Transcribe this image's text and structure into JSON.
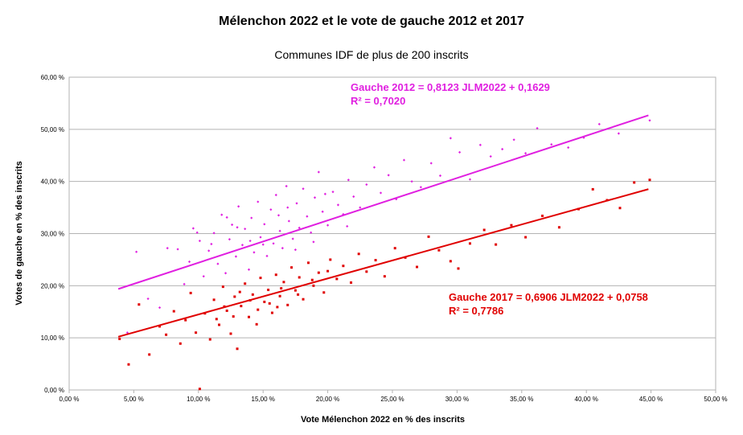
{
  "title": "Mélenchon 2022 et le vote de gauche 2012 et 2017",
  "subtitle": "Communes IDF de plus de 200 inscrits",
  "chart_data": {
    "type": "scatter",
    "title": "Mélenchon 2022 et le vote de gauche 2012 et 2017",
    "subtitle": "Communes IDF de plus de 200 inscrits",
    "xlabel": "Vote Mélenchon 2022 en % des inscrits",
    "ylabel": "Votes de gauche en % des inscrits",
    "xlim": [
      0,
      50
    ],
    "ylim": [
      0,
      60
    ],
    "x_ticks": [
      0,
      5,
      10,
      15,
      20,
      25,
      30,
      35,
      40,
      45,
      50
    ],
    "x_tick_labels": [
      "0,00 %",
      "5,00 %",
      "10,00 %",
      "15,00 %",
      "20,00 %",
      "25,00 %",
      "30,00 %",
      "35,00 %",
      "40,00 %",
      "45,00 %",
      "50,00 %"
    ],
    "y_ticks": [
      0,
      10,
      20,
      30,
      40,
      50,
      60
    ],
    "y_tick_labels": [
      "0,00 %",
      "10,00 %",
      "20,00 %",
      "30,00 %",
      "40,00 %",
      "50,00 %",
      "60,00 %"
    ],
    "grid": "horizontal",
    "series": [
      {
        "name": "Gauche 2012",
        "color": "#e020e0",
        "marker": "small-diamond",
        "trendline": {
          "slope": 0.8123,
          "intercept": 0.1629,
          "x_range": [
            3.8,
            44.8
          ]
        },
        "equation": "Gauche 2012 = 0,8123 JLM2022 + 0,1629",
        "r2": "R² = 0,7020",
        "points": [
          [
            4.5,
            11.0
          ],
          [
            5.2,
            26.5
          ],
          [
            6.1,
            17.5
          ],
          [
            7.0,
            15.8
          ],
          [
            7.6,
            27.2
          ],
          [
            8.4,
            27.0
          ],
          [
            8.9,
            20.3
          ],
          [
            9.3,
            24.6
          ],
          [
            9.6,
            31.0
          ],
          [
            10.1,
            28.6
          ],
          [
            10.4,
            21.8
          ],
          [
            10.8,
            26.7
          ],
          [
            11.2,
            30.1
          ],
          [
            11.5,
            24.2
          ],
          [
            11.8,
            33.6
          ],
          [
            12.1,
            22.4
          ],
          [
            12.4,
            28.9
          ],
          [
            12.6,
            31.7
          ],
          [
            12.9,
            25.6
          ],
          [
            13.1,
            35.2
          ],
          [
            13.4,
            27.8
          ],
          [
            13.6,
            30.9
          ],
          [
            13.9,
            23.1
          ],
          [
            14.1,
            33.0
          ],
          [
            14.3,
            26.4
          ],
          [
            14.6,
            36.1
          ],
          [
            14.8,
            29.3
          ],
          [
            15.1,
            31.8
          ],
          [
            15.3,
            25.7
          ],
          [
            15.6,
            34.6
          ],
          [
            15.8,
            28.1
          ],
          [
            16.0,
            37.4
          ],
          [
            16.3,
            30.5
          ],
          [
            16.5,
            27.2
          ],
          [
            16.8,
            39.1
          ],
          [
            17.0,
            32.4
          ],
          [
            17.3,
            29.0
          ],
          [
            17.6,
            35.8
          ],
          [
            17.8,
            31.1
          ],
          [
            18.1,
            38.6
          ],
          [
            18.4,
            33.3
          ],
          [
            18.7,
            30.2
          ],
          [
            19.0,
            36.9
          ],
          [
            19.3,
            41.8
          ],
          [
            19.6,
            34.2
          ],
          [
            20.0,
            31.6
          ],
          [
            20.4,
            38.0
          ],
          [
            20.8,
            35.5
          ],
          [
            21.2,
            33.7
          ],
          [
            21.6,
            40.3
          ],
          [
            22.0,
            37.1
          ],
          [
            22.5,
            35.0
          ],
          [
            23.0,
            39.4
          ],
          [
            23.6,
            42.7
          ],
          [
            24.1,
            37.8
          ],
          [
            24.7,
            41.2
          ],
          [
            25.3,
            36.6
          ],
          [
            25.9,
            44.1
          ],
          [
            26.5,
            40.0
          ],
          [
            27.2,
            38.9
          ],
          [
            28.0,
            43.5
          ],
          [
            28.7,
            41.1
          ],
          [
            29.5,
            48.3
          ],
          [
            30.2,
            45.6
          ],
          [
            31.0,
            40.4
          ],
          [
            31.8,
            47.0
          ],
          [
            32.6,
            44.8
          ],
          [
            33.5,
            46.2
          ],
          [
            34.4,
            48.0
          ],
          [
            35.3,
            45.4
          ],
          [
            36.2,
            50.2
          ],
          [
            37.3,
            47.1
          ],
          [
            38.6,
            46.5
          ],
          [
            39.8,
            48.4
          ],
          [
            41.0,
            51.0
          ],
          [
            42.5,
            49.2
          ],
          [
            44.9,
            51.7
          ],
          [
            9.9,
            30.2
          ],
          [
            11.0,
            28.0
          ],
          [
            13.0,
            31.2
          ],
          [
            14.0,
            28.6
          ],
          [
            15.0,
            27.9
          ],
          [
            16.2,
            33.5
          ],
          [
            17.5,
            26.9
          ],
          [
            18.9,
            28.4
          ],
          [
            12.2,
            33.1
          ],
          [
            16.9,
            35.0
          ],
          [
            19.8,
            37.6
          ],
          [
            21.5,
            31.4
          ]
        ]
      },
      {
        "name": "Gauche 2017",
        "color": "#e00000",
        "marker": "small-square",
        "trendline": {
          "slope": 0.6906,
          "intercept": 0.0758,
          "x_range": [
            3.8,
            44.8
          ]
        },
        "equation": "Gauche 2017 = 0,6906 JLM2022 + 0,0758",
        "r2": "R² = 0,7786",
        "points": [
          [
            3.9,
            9.8
          ],
          [
            4.6,
            4.9
          ],
          [
            5.4,
            16.4
          ],
          [
            6.2,
            6.8
          ],
          [
            7.0,
            12.2
          ],
          [
            7.5,
            10.6
          ],
          [
            8.1,
            15.1
          ],
          [
            8.6,
            8.9
          ],
          [
            9.0,
            13.4
          ],
          [
            9.4,
            18.6
          ],
          [
            9.8,
            11.0
          ],
          [
            10.1,
            0.2
          ],
          [
            10.5,
            14.7
          ],
          [
            10.9,
            9.7
          ],
          [
            11.2,
            17.3
          ],
          [
            11.6,
            12.5
          ],
          [
            11.9,
            19.8
          ],
          [
            12.2,
            15.2
          ],
          [
            12.5,
            10.8
          ],
          [
            12.8,
            17.9
          ],
          [
            13.0,
            7.9
          ],
          [
            13.3,
            16.1
          ],
          [
            13.6,
            20.4
          ],
          [
            13.9,
            14.0
          ],
          [
            14.2,
            18.3
          ],
          [
            14.5,
            12.6
          ],
          [
            14.8,
            21.5
          ],
          [
            15.1,
            16.9
          ],
          [
            15.4,
            19.2
          ],
          [
            15.7,
            14.8
          ],
          [
            16.0,
            22.1
          ],
          [
            16.3,
            18.0
          ],
          [
            16.6,
            20.7
          ],
          [
            16.9,
            16.3
          ],
          [
            17.2,
            23.5
          ],
          [
            17.5,
            19.1
          ],
          [
            17.8,
            21.6
          ],
          [
            18.1,
            17.4
          ],
          [
            18.5,
            24.4
          ],
          [
            18.9,
            20.0
          ],
          [
            19.3,
            22.5
          ],
          [
            19.7,
            18.7
          ],
          [
            20.2,
            25.0
          ],
          [
            20.7,
            21.3
          ],
          [
            21.2,
            23.8
          ],
          [
            21.8,
            20.6
          ],
          [
            22.4,
            26.1
          ],
          [
            23.0,
            22.7
          ],
          [
            23.7,
            24.9
          ],
          [
            24.4,
            21.8
          ],
          [
            25.2,
            27.2
          ],
          [
            26.0,
            25.4
          ],
          [
            26.9,
            23.6
          ],
          [
            27.8,
            29.4
          ],
          [
            28.6,
            26.8
          ],
          [
            29.5,
            24.7
          ],
          [
            30.1,
            23.3
          ],
          [
            31.0,
            28.1
          ],
          [
            32.1,
            30.7
          ],
          [
            33.0,
            27.9
          ],
          [
            34.2,
            31.6
          ],
          [
            35.3,
            29.3
          ],
          [
            36.6,
            33.4
          ],
          [
            37.9,
            31.2
          ],
          [
            39.4,
            34.7
          ],
          [
            40.5,
            38.5
          ],
          [
            41.6,
            36.4
          ],
          [
            42.6,
            34.9
          ],
          [
            43.7,
            39.8
          ],
          [
            44.9,
            40.3
          ],
          [
            12.0,
            16.0
          ],
          [
            13.2,
            18.8
          ],
          [
            14.0,
            17.2
          ],
          [
            15.5,
            16.6
          ],
          [
            16.4,
            19.5
          ],
          [
            17.7,
            18.3
          ],
          [
            18.8,
            21.1
          ],
          [
            20.0,
            22.8
          ],
          [
            11.4,
            13.6
          ],
          [
            12.7,
            14.1
          ],
          [
            14.6,
            15.4
          ],
          [
            16.1,
            15.9
          ]
        ]
      }
    ]
  }
}
